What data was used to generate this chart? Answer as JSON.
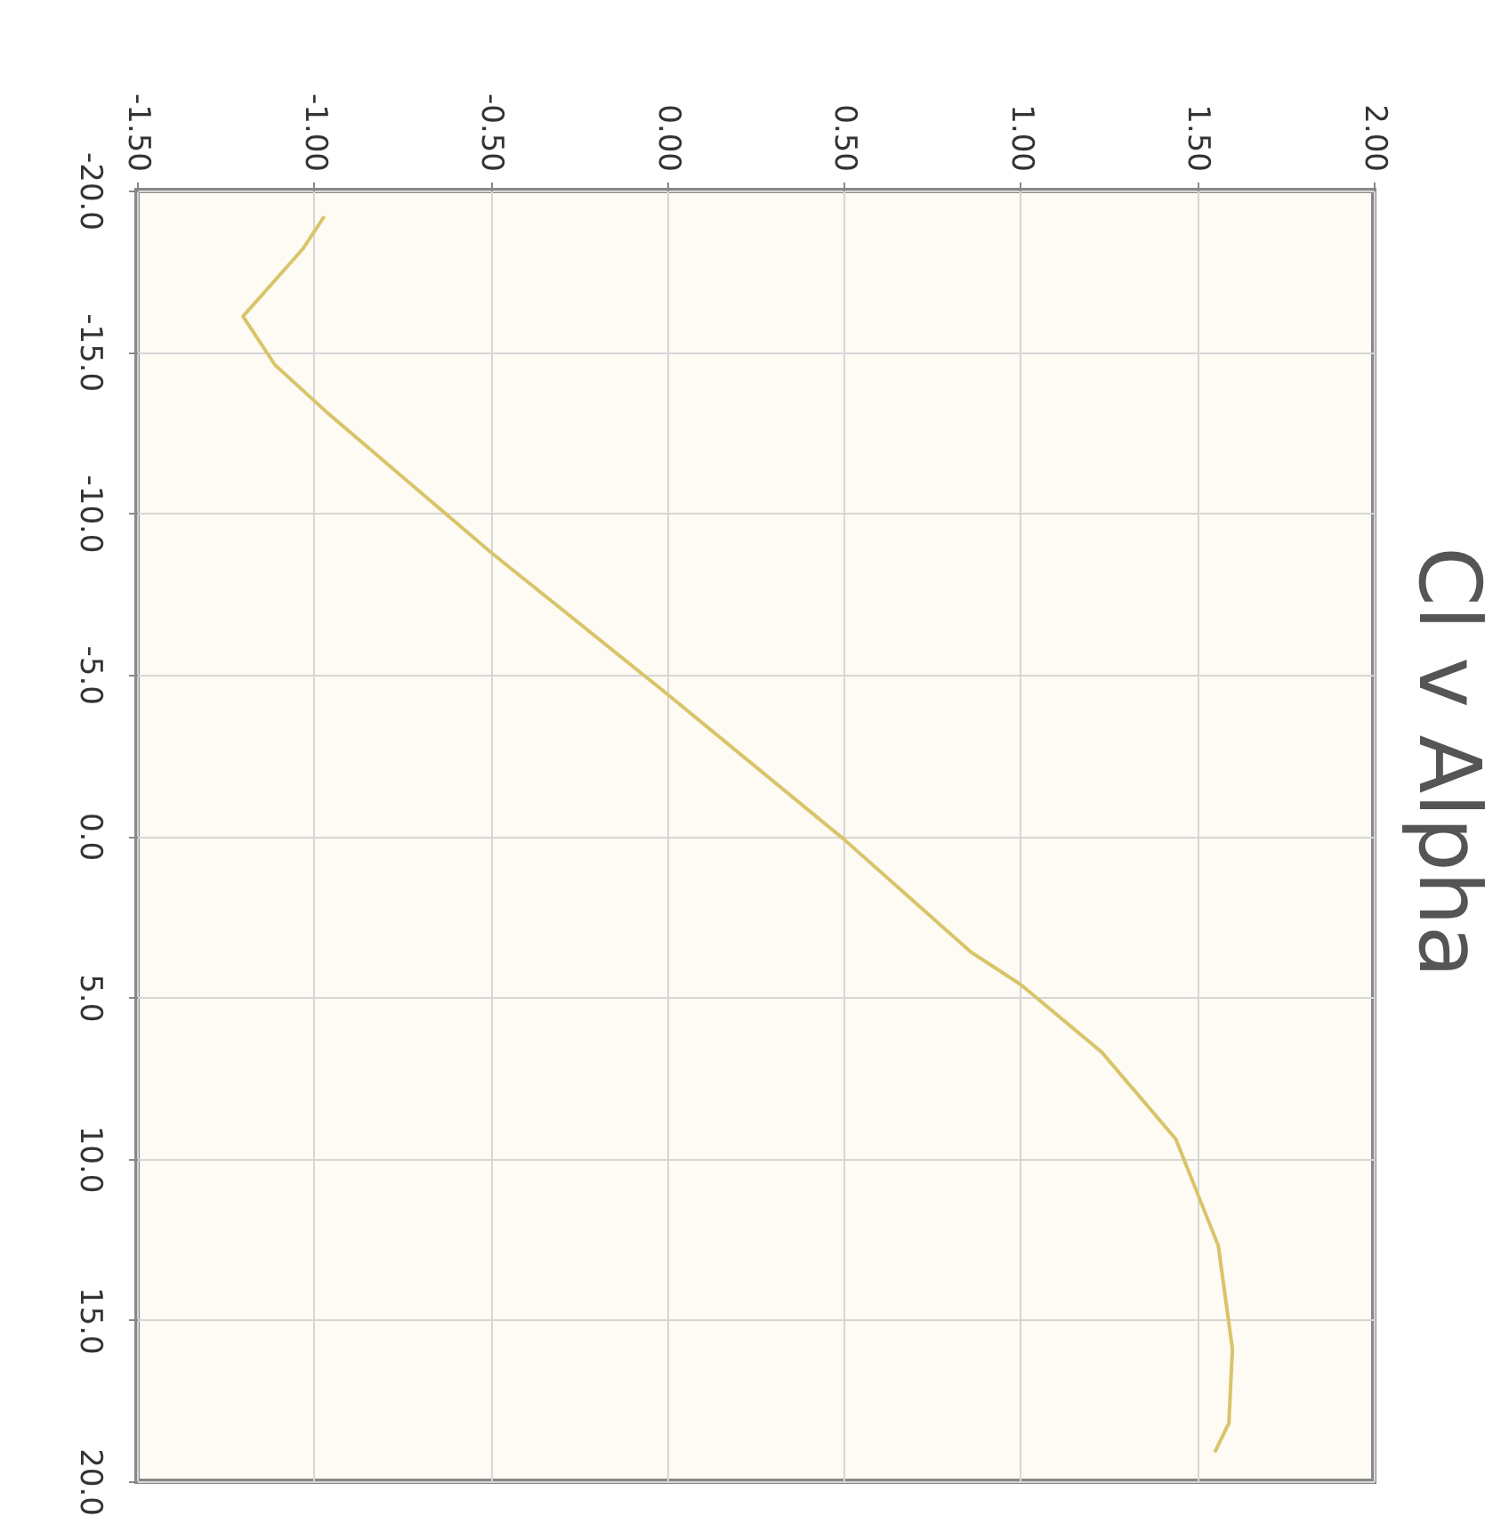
{
  "chart_data": {
    "type": "line",
    "title": "Cl v Alpha",
    "x": [
      -0.97,
      -1.03,
      -1.2,
      -1.11,
      -0.96,
      -0.5,
      0.0,
      0.5,
      0.86,
      1.0,
      1.23,
      1.44,
      1.56,
      1.6,
      1.59,
      1.55
    ],
    "series": [
      {
        "color": "#d9c46a",
        "values": [
          -19.2,
          -18.2,
          -16.1,
          -14.6,
          -13.1,
          -8.8,
          -4.4,
          0.1,
          3.6,
          4.6,
          6.7,
          9.4,
          12.7,
          15.9,
          18.2,
          19.1
        ]
      }
    ],
    "xlim": [
      -1.5,
      2.0
    ],
    "xticks": [
      {
        "value": -1.5,
        "label": "-1.50"
      },
      {
        "value": -1.0,
        "label": "-1.00"
      },
      {
        "value": -0.5,
        "label": "-0.50"
      },
      {
        "value": 0,
        "label": "0.00"
      },
      {
        "value": 0.5,
        "label": "0.50"
      },
      {
        "value": 1.0,
        "label": "1.00"
      },
      {
        "value": 1.5,
        "label": "1.50"
      },
      {
        "value": 2.0,
        "label": "2.00"
      }
    ],
    "ylim": [
      20,
      -20
    ],
    "yticks": [
      {
        "value": -20,
        "label": "-20.0"
      },
      {
        "value": -15,
        "label": "-15.0"
      },
      {
        "value": -10,
        "label": "-10.0"
      },
      {
        "value": -5,
        "label": "-5.0"
      },
      {
        "value": 0,
        "label": "0.0"
      },
      {
        "value": 5,
        "label": "5.0"
      },
      {
        "value": 10,
        "label": "10.0"
      },
      {
        "value": 15,
        "label": "15.0"
      },
      {
        "value": 20,
        "label": "20.0"
      }
    ],
    "grid": true,
    "marker": "none",
    "line_style": "solid"
  }
}
